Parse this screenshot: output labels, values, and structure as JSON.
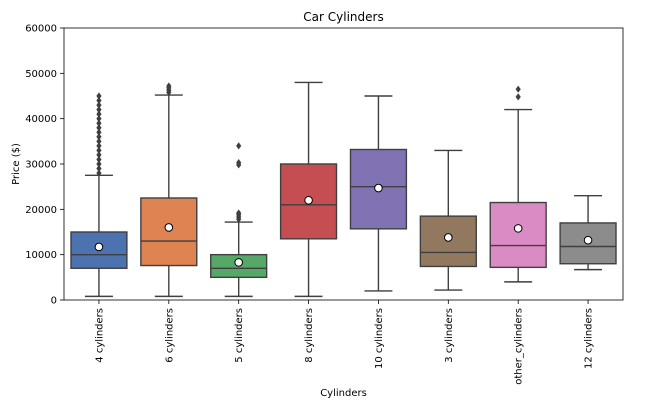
{
  "chart_data": {
    "type": "box",
    "title": "Car Cylinders",
    "xlabel": "Cylinders",
    "ylabel": "Price ($)",
    "ylim": [
      0,
      60000
    ],
    "yticks": [
      0,
      10000,
      20000,
      30000,
      40000,
      50000,
      60000
    ],
    "grid": false,
    "categories": [
      "4 cylinders",
      "6 cylinders",
      "5 cylinders",
      "8 cylinders",
      "10 cylinders",
      "3 cylinders",
      "other_cylinders",
      "12 cylinders"
    ],
    "boxes": [
      {
        "category": "4 cylinders",
        "color": "#4c72b0",
        "whisker_low": 800,
        "q1": 7000,
        "median": 10000,
        "q3": 15000,
        "whisker_high": 27500,
        "mean": 11700,
        "outliers": [
          28000,
          29000,
          30000,
          31000,
          32000,
          33000,
          34000,
          35000,
          36000,
          37000,
          38000,
          39000,
          40000,
          41000,
          42000,
          43000,
          44000,
          45000
        ]
      },
      {
        "category": "6 cylinders",
        "color": "#dd8452",
        "whisker_low": 800,
        "q1": 7600,
        "median": 13000,
        "q3": 22500,
        "whisker_high": 45200,
        "mean": 16000,
        "outliers": [
          45800,
          46300,
          46800,
          47200
        ]
      },
      {
        "category": "5 cylinders",
        "color": "#55a868",
        "whisker_low": 800,
        "q1": 5000,
        "median": 7000,
        "q3": 10000,
        "whisker_high": 17200,
        "mean": 8300,
        "outliers": [
          17800,
          18300,
          18800,
          19200,
          29800,
          30300,
          34000
        ]
      },
      {
        "category": "8 cylinders",
        "color": "#c44e52",
        "whisker_low": 800,
        "q1": 13500,
        "median": 21000,
        "q3": 30000,
        "whisker_high": 48000,
        "mean": 22000,
        "outliers": []
      },
      {
        "category": "10 cylinders",
        "color": "#8172b3",
        "whisker_low": 2000,
        "q1": 15700,
        "median": 25000,
        "q3": 33200,
        "whisker_high": 45000,
        "mean": 24700,
        "outliers": []
      },
      {
        "category": "3 cylinders",
        "color": "#937860",
        "whisker_low": 2200,
        "q1": 7400,
        "median": 10500,
        "q3": 18500,
        "whisker_high": 33000,
        "mean": 13800,
        "outliers": []
      },
      {
        "category": "other_cylinders",
        "color": "#da8bc3",
        "whisker_low": 4000,
        "q1": 7200,
        "median": 12000,
        "q3": 21500,
        "whisker_high": 42000,
        "mean": 15800,
        "outliers": [
          44800,
          46500
        ]
      },
      {
        "category": "12 cylinders",
        "color": "#8c8c8c",
        "whisker_low": 6700,
        "q1": 8000,
        "median": 11800,
        "q3": 17000,
        "whisker_high": 23000,
        "mean": 13200,
        "outliers": []
      }
    ]
  }
}
